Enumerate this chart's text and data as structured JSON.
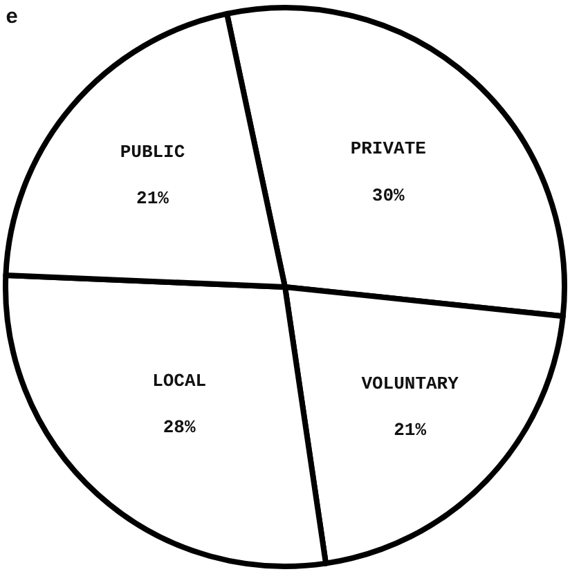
{
  "chart_data": {
    "type": "pie",
    "title": "e",
    "categories": [
      "PRIVATE",
      "VOLUNTARY",
      "LOCAL",
      "PUBLIC"
    ],
    "values": [
      30,
      21,
      28,
      21
    ],
    "value_labels": [
      "30%",
      "21%",
      "28%",
      "21%"
    ],
    "colors": [
      "#ffffff",
      "#ffffff",
      "#ffffff",
      "#ffffff"
    ],
    "legend": false
  }
}
